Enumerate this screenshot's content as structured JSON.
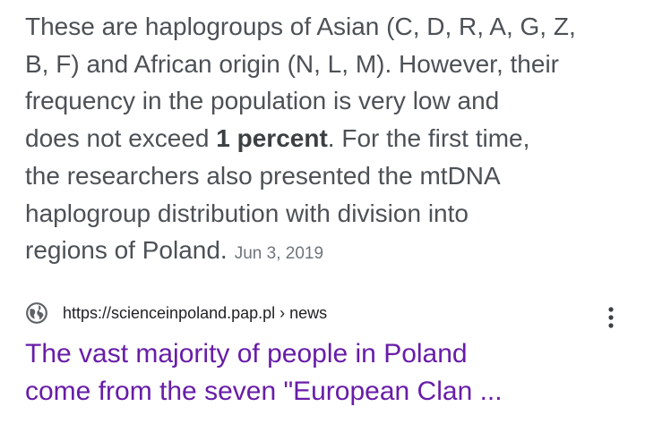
{
  "snippet": {
    "lines": [
      "These are haplogroups of Asian (C, D, R, A, G, Z,",
      "B, F) and African origin (N, L, M). However, their",
      "frequency in the population is very low and"
    ],
    "line4": {
      "before": "does not exceed ",
      "bold": "1 percent",
      "after": ". For the first time,"
    },
    "rest": [
      "the researchers also presented the mtDNA",
      "haplogroup distribution with division into"
    ],
    "last": "regions of Poland.",
    "date": "Jun 3, 2019"
  },
  "result": {
    "url": "https://scienceinpoland.pap.pl › news",
    "title_lines": [
      "The vast majority of people in Poland",
      "come from the seven \"European Clan ..."
    ]
  }
}
